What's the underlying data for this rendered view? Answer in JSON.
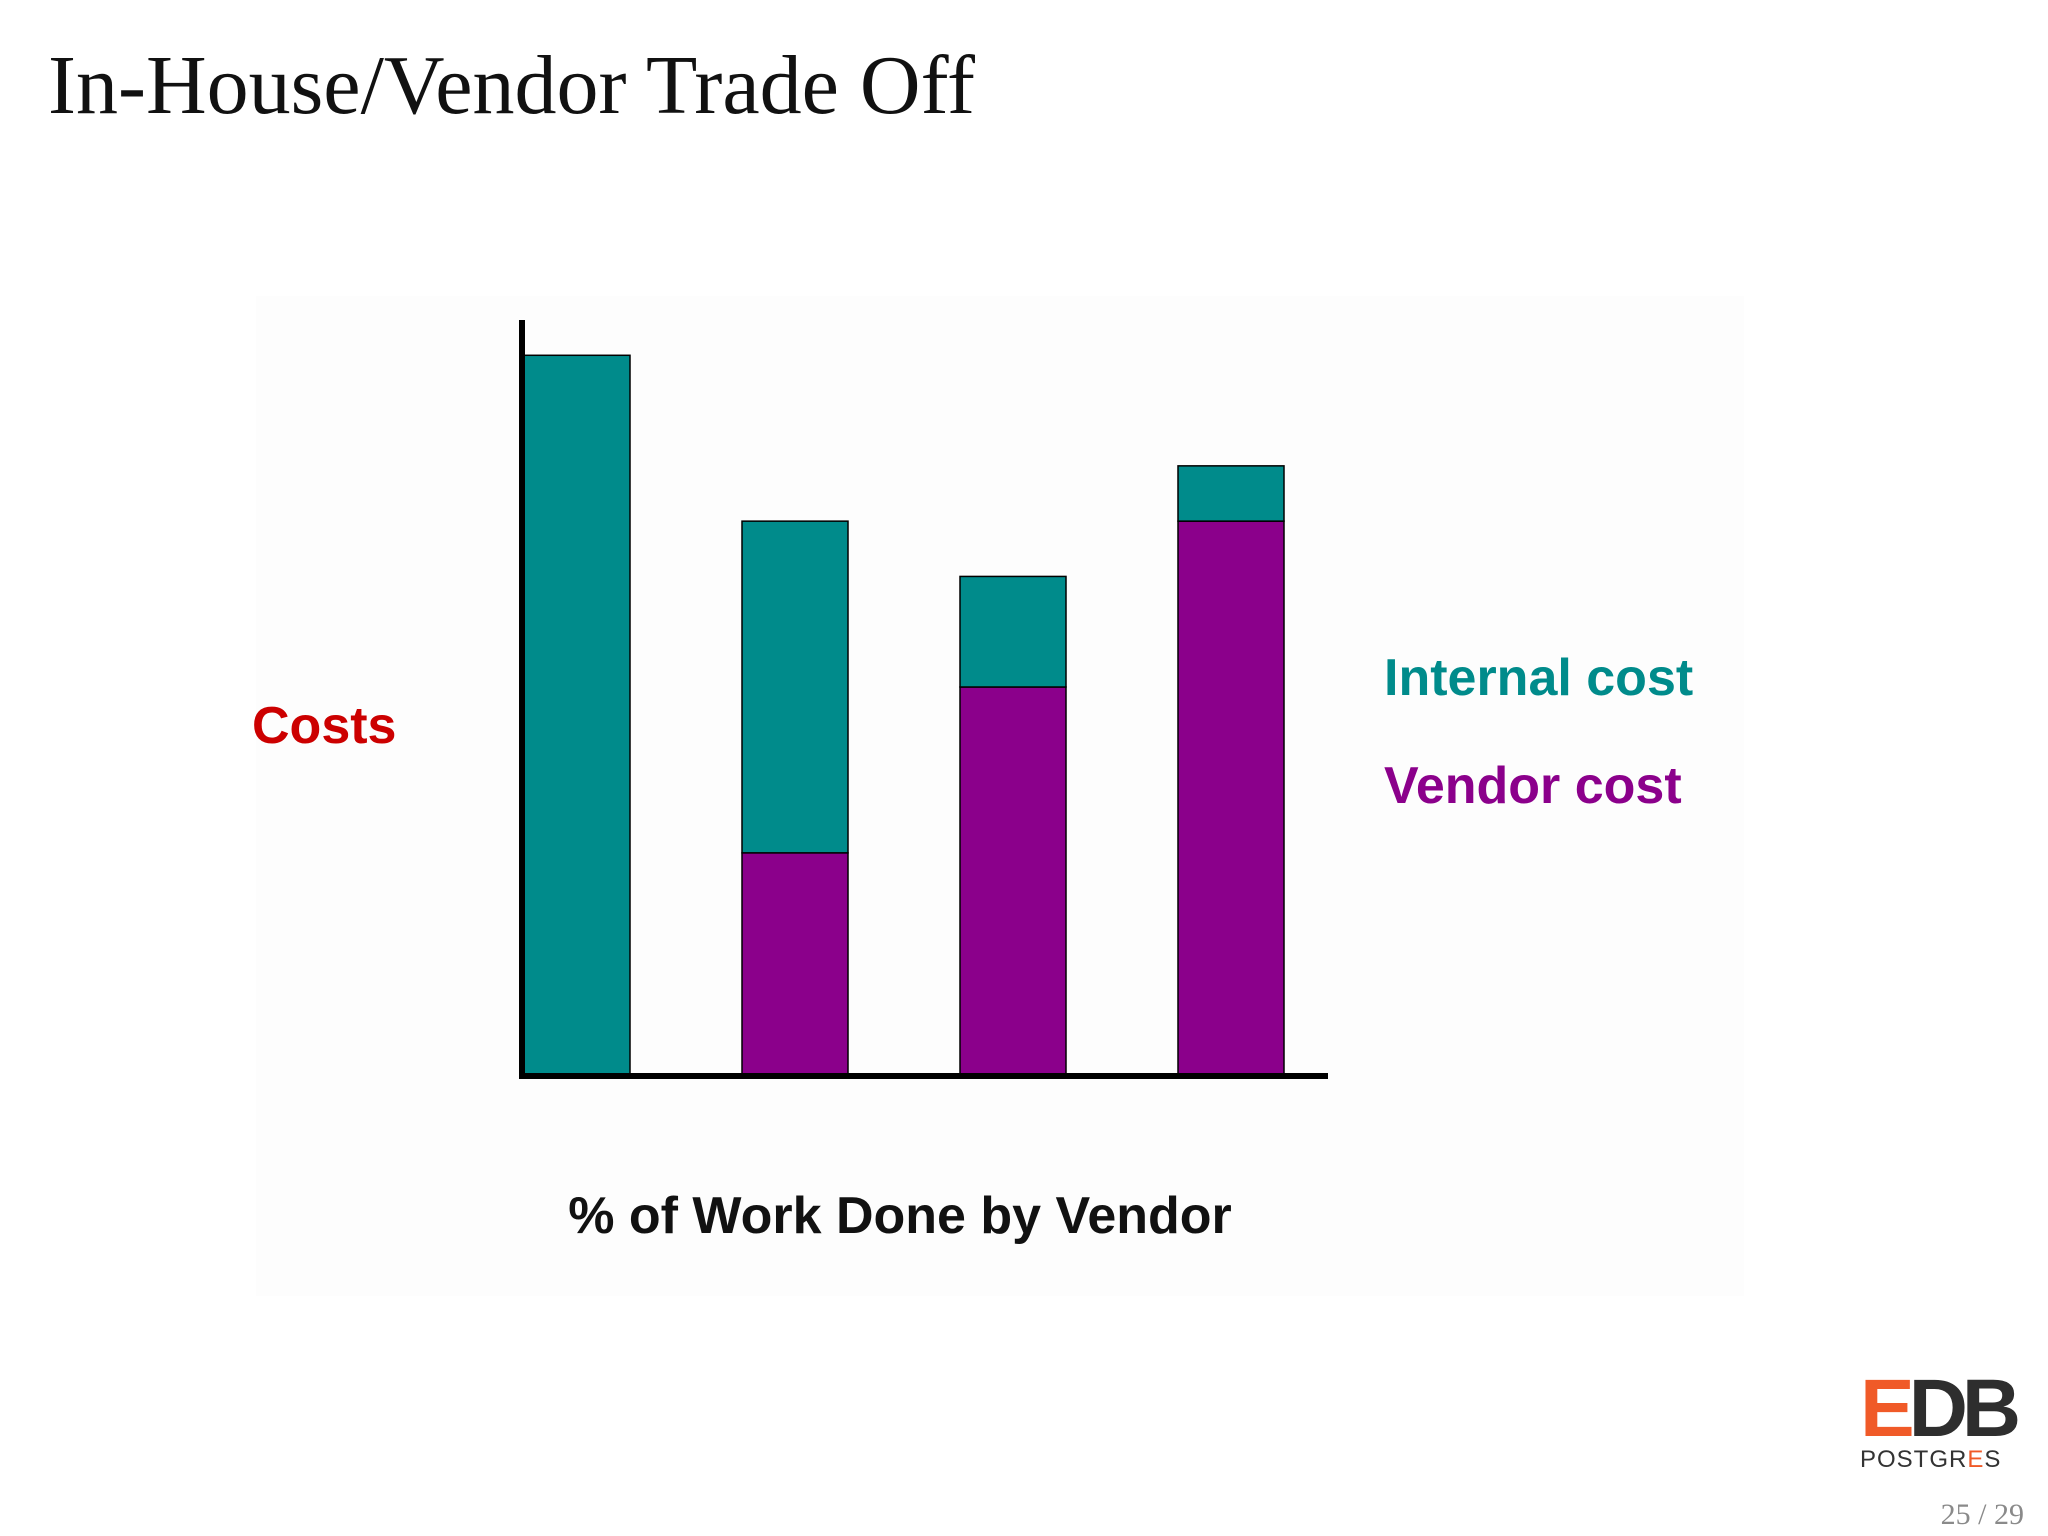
{
  "slide": {
    "title": "In-House/Vendor Trade Off",
    "page_number": "25 / 29"
  },
  "logo": {
    "mark_e": "E",
    "mark_db": "DB",
    "sub_1": "POSTGR",
    "sub_e": "E",
    "sub_2": "S",
    "text": "EDB POSTGRES"
  },
  "colors": {
    "internal": "#008b8b",
    "vendor": "#8b008b",
    "ylabel": "#cc0000",
    "xlabel": "#111111",
    "axis": "#000000"
  },
  "chart_data": {
    "type": "bar",
    "stacked": true,
    "xlabel": "% of Work Done by Vendor",
    "ylabel": "Costs",
    "categories": [
      "",
      "",
      "",
      ""
    ],
    "series": [
      {
        "name": "Vendor cost",
        "color": "#8b008b",
        "values": [
          0,
          2,
          3.5,
          5
        ]
      },
      {
        "name": "Internal cost",
        "color": "#008b8b",
        "values": [
          6.5,
          3,
          1,
          0.5
        ]
      }
    ],
    "ylim": [
      0,
      7
    ],
    "tick_labels": false,
    "grid": false,
    "legend": {
      "position": "right",
      "entries": [
        "Internal cost",
        "Vendor cost"
      ]
    }
  }
}
